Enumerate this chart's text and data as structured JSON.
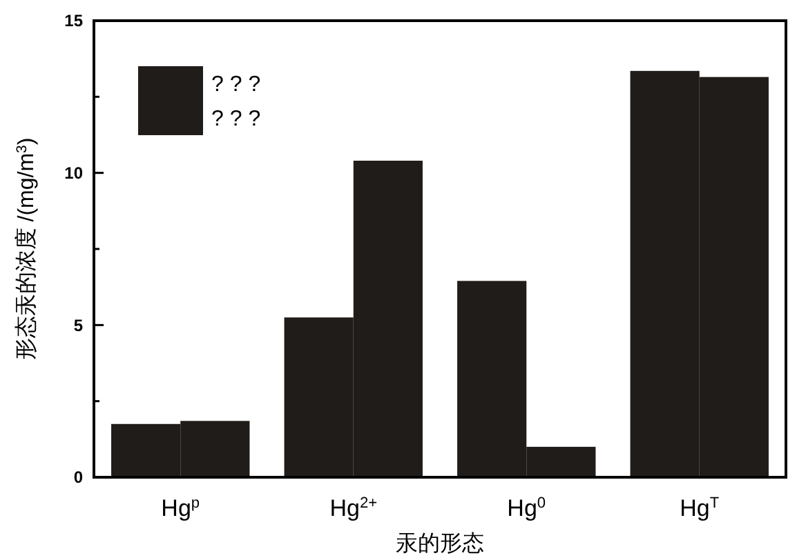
{
  "chart_data": {
    "type": "bar",
    "xlabel": "汞的形态",
    "ylabel": "形态汞的浓度 /(mg/m$^{3}$)",
    "categories": [
      "Hg$^{p}$",
      "Hg$^{2+}$",
      "Hg$^{0}$",
      "Hg$^{T}$"
    ],
    "series": [
      {
        "name": "? ? ?",
        "color": "#201c1a",
        "values": [
          1.75,
          5.25,
          6.45,
          13.35
        ]
      },
      {
        "name": "? ? ?",
        "color": "#201c1a",
        "values": [
          1.85,
          10.4,
          1.0,
          13.15
        ]
      }
    ],
    "ylim": [
      0,
      15
    ],
    "yticks": [
      0,
      {
        "value": 2.5,
        "label": null
      },
      5,
      {
        "value": 7.5,
        "label": null
      },
      10,
      {
        "value": 12.5,
        "label": null
      },
      15
    ],
    "grid": false,
    "legend": "top left"
  }
}
